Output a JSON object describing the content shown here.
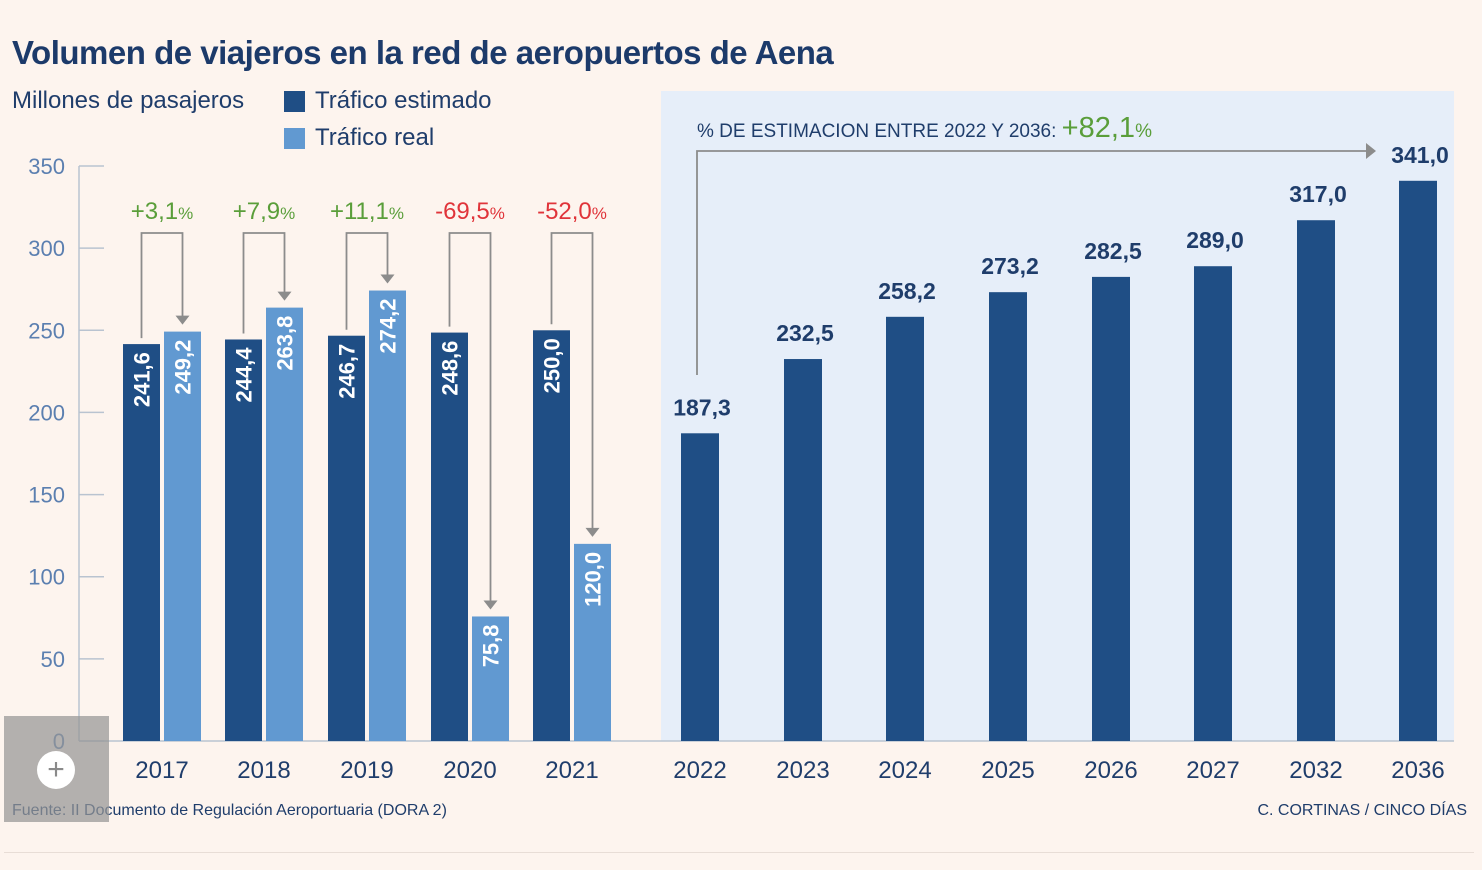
{
  "header": {
    "title": "Volumen de viajeros en la red de aeropuertos de Aena",
    "unit_label": "Millones de pasajeros"
  },
  "legend": {
    "estimated": {
      "label": "Tráfico estimado",
      "color": "#1f4e85"
    },
    "real": {
      "label": "Tráfico real",
      "color": "#6199d1"
    }
  },
  "estimate_note": {
    "text": "% DE ESTIMACION ENTRE 2022 Y 2036:",
    "value": "+82,1",
    "pct_sign": "%"
  },
  "footer": {
    "source": "Fuente: II Documento de Regulación Aeroportuaria (DORA 2)",
    "credit": "C. CORTINAS / CINCO DÍAS"
  },
  "zoom": {
    "icon": "plus-icon"
  },
  "chart_data": {
    "type": "bar",
    "ylim": [
      0,
      350
    ],
    "yticks": [
      "0",
      "50",
      "100",
      "150",
      "200",
      "250",
      "300",
      "350"
    ],
    "categories": [
      "2017",
      "2018",
      "2019",
      "2020",
      "2021",
      "2022",
      "2023",
      "2024",
      "2025",
      "2026",
      "2027",
      "2032",
      "2036"
    ],
    "series": [
      {
        "name": "Tráfico estimado",
        "values": [
          241.6,
          244.4,
          246.7,
          248.6,
          250.0,
          187.3,
          232.5,
          258.2,
          273.2,
          282.5,
          289.0,
          317.0,
          341.0
        ],
        "labels": [
          "241,6",
          "244,4",
          "246,7",
          "248,6",
          "250,0",
          "187,3",
          "232,5",
          "258,2",
          "273,2",
          "282,5",
          "289,0",
          "317,0",
          "341,0"
        ]
      },
      {
        "name": "Tráfico real",
        "values": [
          249.2,
          263.8,
          274.2,
          75.8,
          120.0,
          null,
          null,
          null,
          null,
          null,
          null,
          null,
          null
        ],
        "labels": [
          "249,2",
          "263,8",
          "274,2",
          "75,8",
          "120,0",
          "",
          "",
          "",
          "",
          "",
          "",
          "",
          ""
        ]
      }
    ],
    "annotations": [
      {
        "category": "2017",
        "text": "+3,1",
        "pct": "%",
        "color": "#5a9e3a"
      },
      {
        "category": "2018",
        "text": "+7,9",
        "pct": "%",
        "color": "#5a9e3a"
      },
      {
        "category": "2019",
        "text": "+11,1",
        "pct": "%",
        "color": "#5a9e3a"
      },
      {
        "category": "2020",
        "text": "-69,5",
        "pct": "%",
        "color": "#e0343a"
      },
      {
        "category": "2021",
        "text": "-52,0",
        "pct": "%",
        "color": "#e0343a"
      }
    ],
    "colors": {
      "axis_text": "#5b7fb0",
      "arrow": "#8c8c8c",
      "forecast_panel": "#e6eef9"
    }
  }
}
